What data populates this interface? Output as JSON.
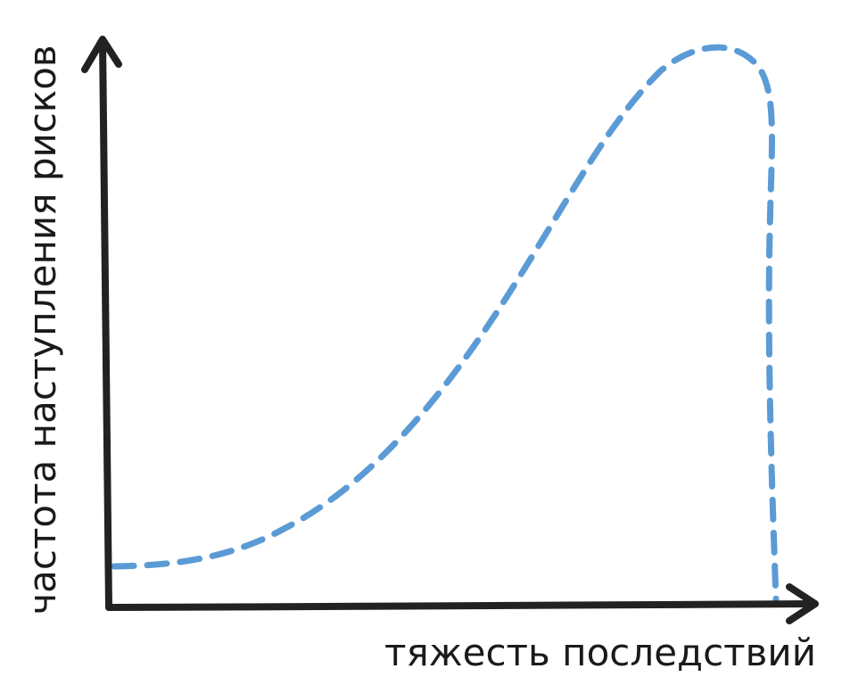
{
  "axes": {
    "y_label": "частота наступления рисков",
    "x_label": "тяжесть последствий"
  }
}
